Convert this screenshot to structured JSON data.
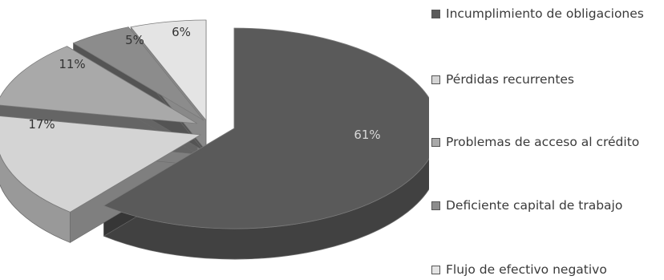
{
  "chart_data": {
    "type": "pie",
    "style": "3d-exploded",
    "categories": [
      "Incumplimiento de obligaciones",
      "Pérdidas recurrentes",
      "Problemas de acceso al crédito",
      "Deficiente capital de trabajo",
      "Flujo de efectivo negativo"
    ],
    "values": [
      61,
      17,
      11,
      5,
      6
    ],
    "labels": [
      "61%",
      "17%",
      "11%",
      "5%",
      "6%"
    ],
    "colors": [
      "#5a5a5a",
      "#d4d4d4",
      "#a9a9a9",
      "#8c8c8c",
      "#e4e4e4"
    ],
    "legend_position": "right",
    "title": ""
  },
  "legend": {
    "items": [
      {
        "text": "Incumplimiento de obligaciones",
        "color": "#5a5a5a"
      },
      {
        "text": "Pérdidas recurrentes",
        "color": "#d4d4d4"
      },
      {
        "text": "Problemas de acceso al crédito",
        "color": "#a9a9a9"
      },
      {
        "text": "Deficiente capital de trabajo",
        "color": "#8c8c8c"
      },
      {
        "text": "Flujo de efectivo negativo",
        "color": "#e4e4e4"
      }
    ]
  }
}
